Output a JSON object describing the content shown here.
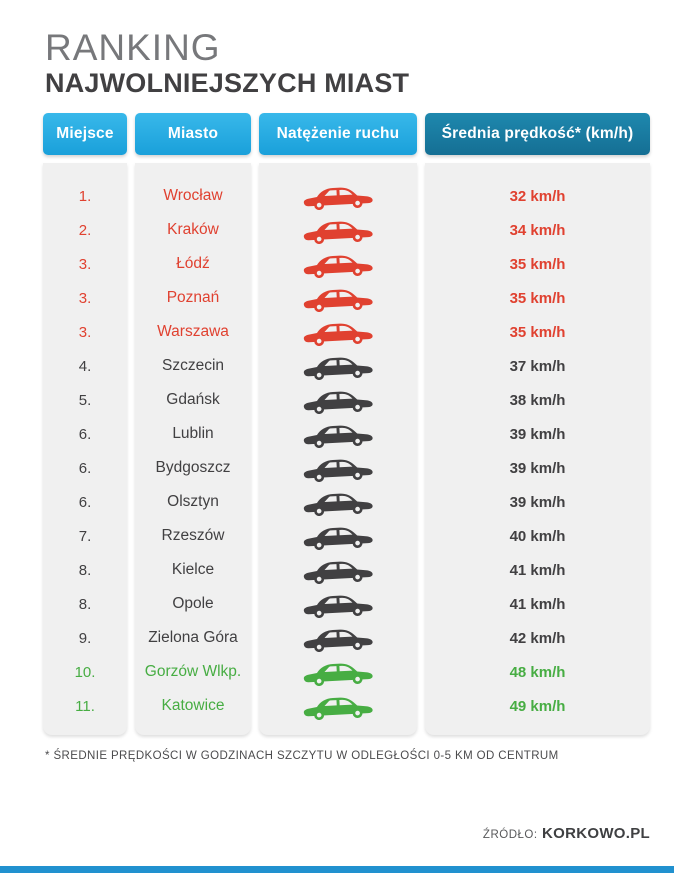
{
  "title": {
    "line1": "RANKING",
    "line2": "NAJWOLNIEJSZYCH MIAST"
  },
  "table": {
    "columns": [
      {
        "key": "place",
        "label": "Miejsce"
      },
      {
        "key": "city",
        "label": "Miasto"
      },
      {
        "key": "traffic",
        "label": "Natężenie ruchu"
      },
      {
        "key": "speed",
        "label": "Średnia prędkość* (km/h)"
      }
    ],
    "rows": [
      {
        "place": "1.",
        "city": "Wrocław",
        "speed": "32 km/h",
        "level": "red"
      },
      {
        "place": "2.",
        "city": "Kraków",
        "speed": "34 km/h",
        "level": "red"
      },
      {
        "place": "3.",
        "city": "Łódź",
        "speed": "35 km/h",
        "level": "red"
      },
      {
        "place": "3.",
        "city": "Poznań",
        "speed": "35 km/h",
        "level": "red"
      },
      {
        "place": "3.",
        "city": "Warszawa",
        "speed": "35 km/h",
        "level": "red"
      },
      {
        "place": "4.",
        "city": "Szczecin",
        "speed": "37 km/h",
        "level": "dark"
      },
      {
        "place": "5.",
        "city": "Gdańsk",
        "speed": "38 km/h",
        "level": "dark"
      },
      {
        "place": "6.",
        "city": "Lublin",
        "speed": "39 km/h",
        "level": "dark"
      },
      {
        "place": "6.",
        "city": "Bydgoszcz",
        "speed": "39 km/h",
        "level": "dark"
      },
      {
        "place": "6.",
        "city": "Olsztyn",
        "speed": "39 km/h",
        "level": "dark"
      },
      {
        "place": "7.",
        "city": "Rzeszów",
        "speed": "40 km/h",
        "level": "dark"
      },
      {
        "place": "8.",
        "city": "Kielce",
        "speed": "41 km/h",
        "level": "dark"
      },
      {
        "place": "8.",
        "city": "Opole",
        "speed": "41 km/h",
        "level": "dark"
      },
      {
        "place": "9.",
        "city": "Zielona Góra",
        "speed": "42 km/h",
        "level": "dark"
      },
      {
        "place": "10.",
        "city": "Gorzów Wlkp.",
        "speed": "48 km/h",
        "level": "green"
      },
      {
        "place": "11.",
        "city": "Katowice",
        "speed": "49 km/h",
        "level": "green"
      }
    ]
  },
  "footnote": "* ŚREDNIE PRĘDKOŚCI W GODZINACH SZCZYTU W ODLEGŁOŚCI 0-5 KM OD CENTRUM",
  "source": {
    "label": "ŹRÓDŁO:",
    "value": "KORKOWO.PL"
  },
  "icons": {
    "traffic": "car-side-icon"
  },
  "colors": {
    "red": "#e04130",
    "dark": "#414042",
    "green": "#47ad43",
    "header_blue": "#29abe2",
    "header_dark_blue": "#1a7fa5",
    "column_bg": "#f0f0f0",
    "title_light": "#77787b",
    "bottom_bar": "#2191cf"
  },
  "chart_data": {
    "type": "table",
    "title": "RANKING NAJWOLNIEJSZYCH MIAST",
    "columns": [
      "Miejsce",
      "Miasto",
      "Natężenie ruchu",
      "Średnia prędkość* (km/h)"
    ],
    "ranks": [
      1,
      2,
      3,
      3,
      3,
      4,
      5,
      6,
      6,
      6,
      7,
      8,
      8,
      9,
      10,
      11
    ],
    "cities": [
      "Wrocław",
      "Kraków",
      "Łódź",
      "Poznań",
      "Warszawa",
      "Szczecin",
      "Gdańsk",
      "Lublin",
      "Bydgoszcz",
      "Olsztyn",
      "Rzeszów",
      "Kielce",
      "Opole",
      "Zielona Góra",
      "Gorzów Wlkp.",
      "Katowice"
    ],
    "speeds_kmh": [
      32,
      34,
      35,
      35,
      35,
      37,
      38,
      39,
      39,
      39,
      40,
      41,
      41,
      42,
      48,
      49
    ],
    "traffic_level": [
      "red",
      "red",
      "red",
      "red",
      "red",
      "black",
      "black",
      "black",
      "black",
      "black",
      "black",
      "black",
      "black",
      "black",
      "green",
      "green"
    ],
    "footnote": "* ŚREDNIE PRĘDKOŚCI W GODZINACH SZCZYTU W ODLEGŁOŚCI 0-5 KM OD CENTRUM",
    "source": "ŹRÓDŁO: KORKOWO.PL"
  }
}
